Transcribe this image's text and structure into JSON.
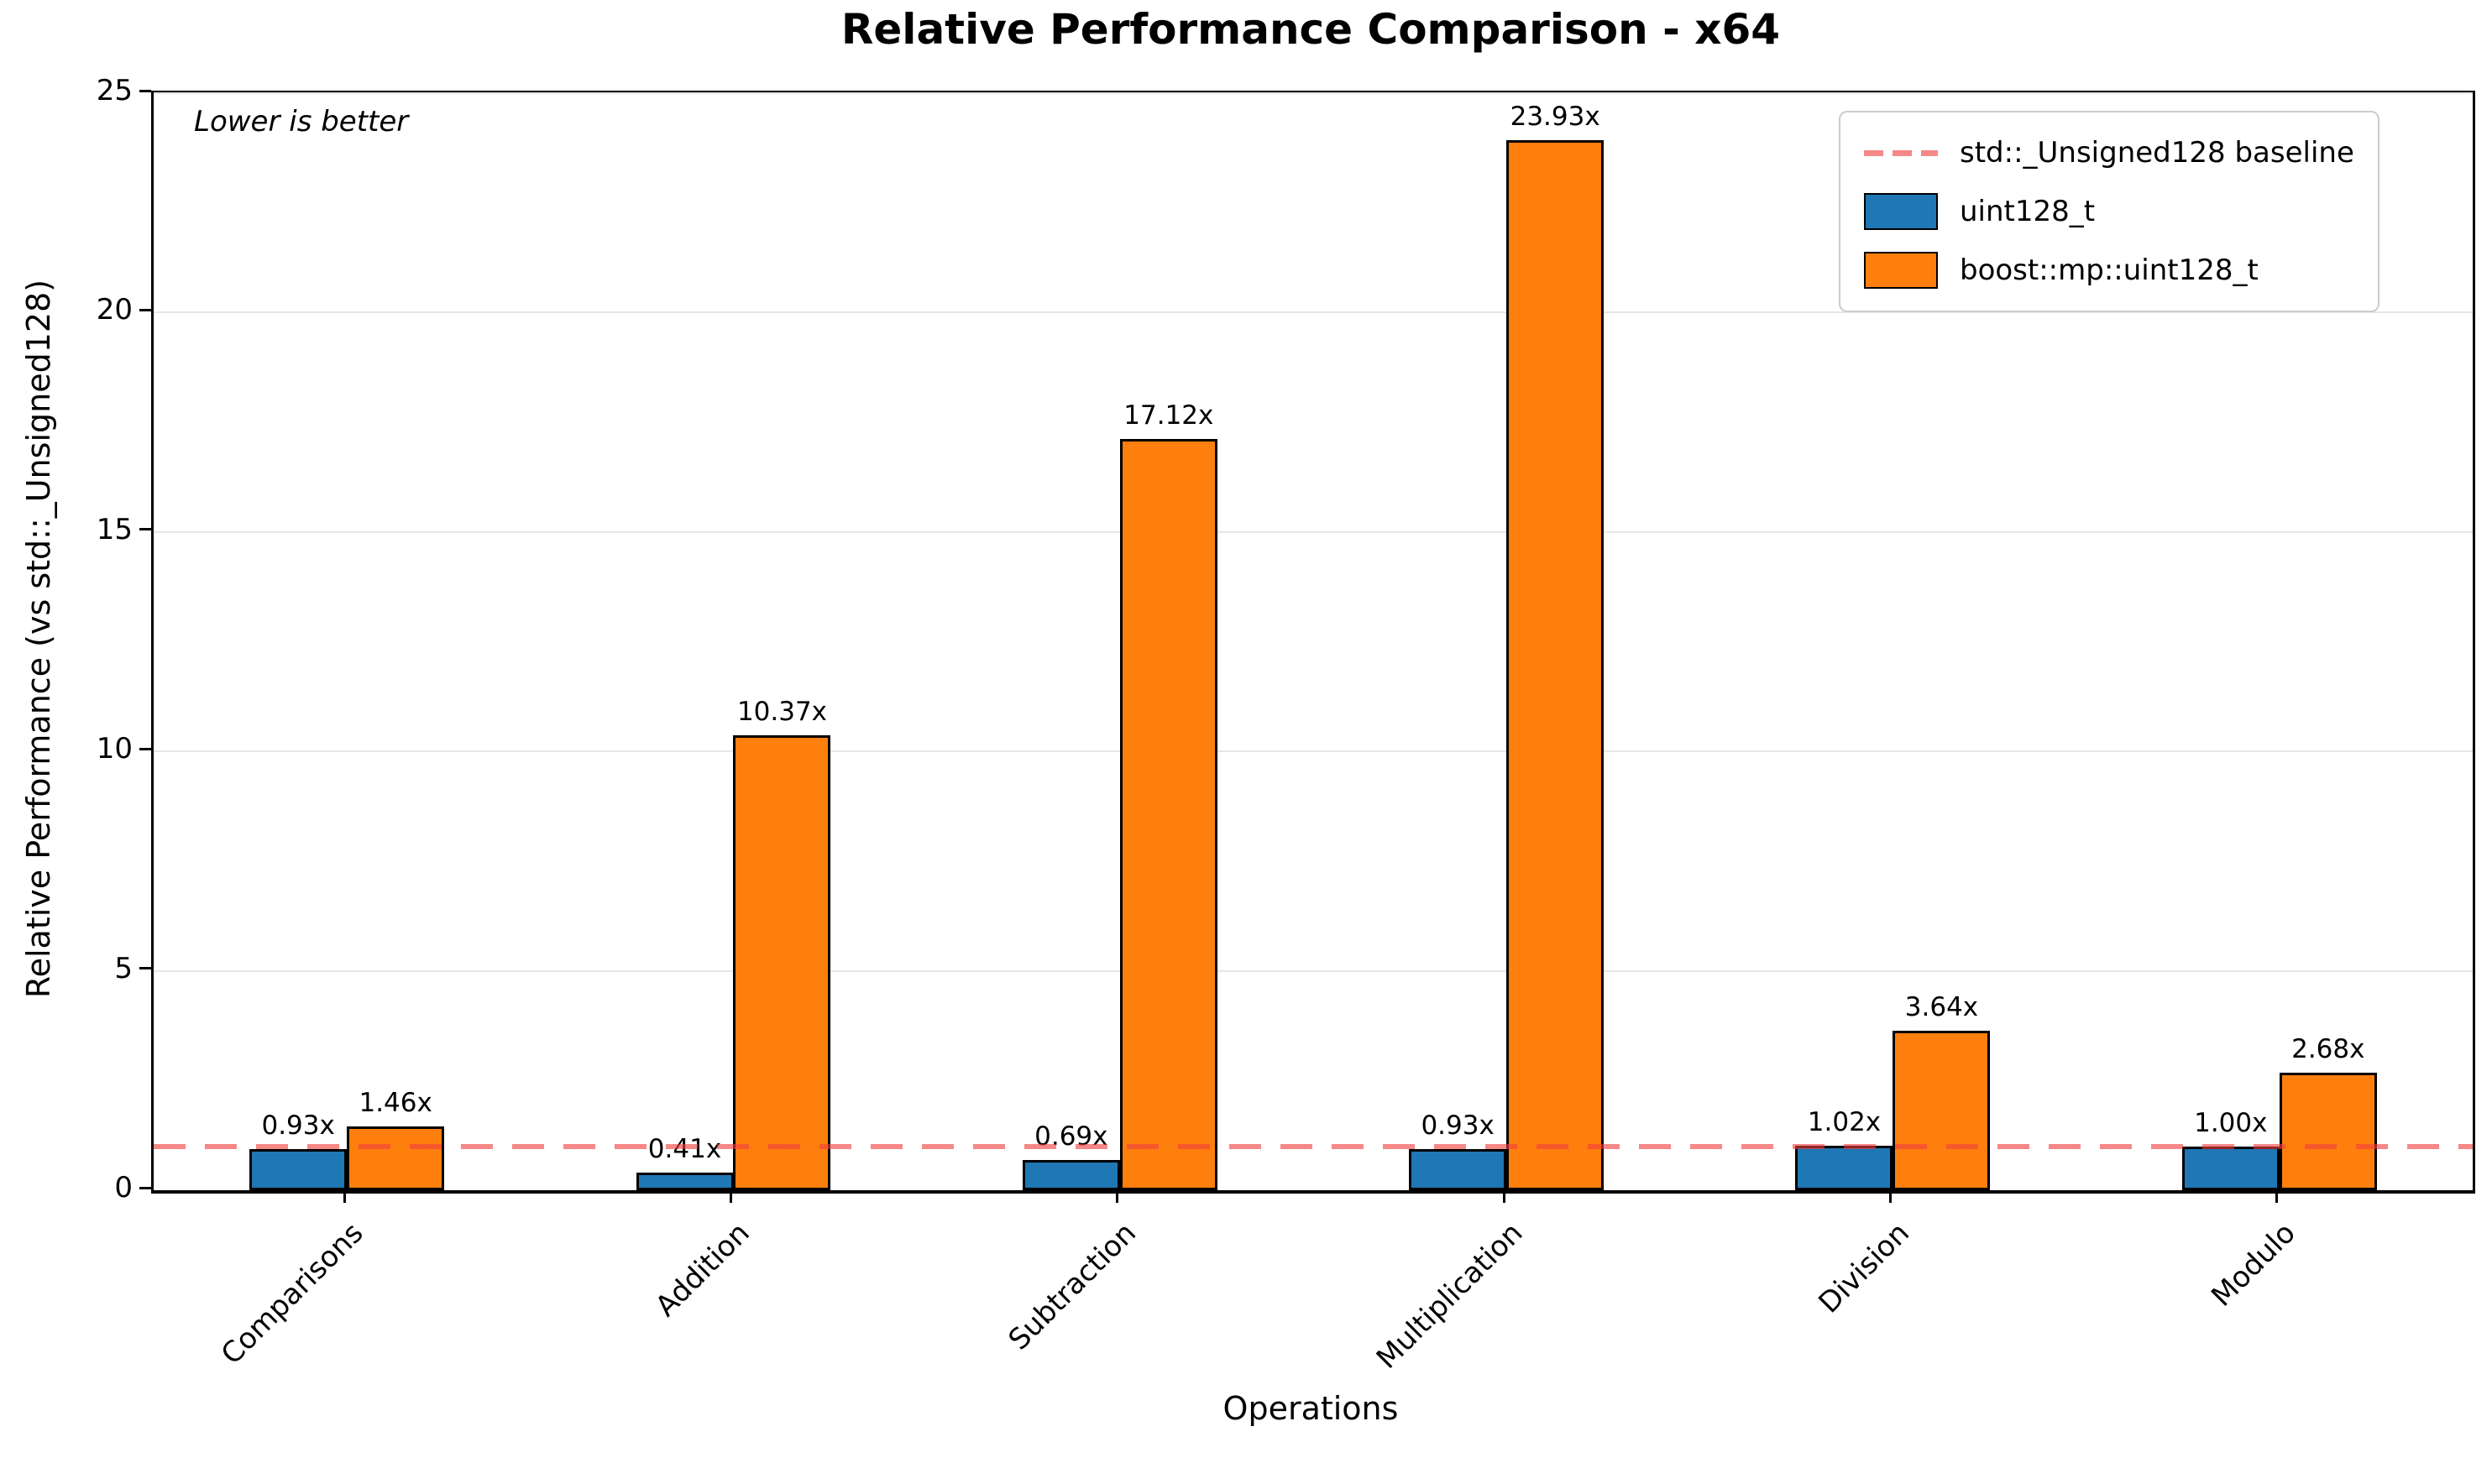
{
  "chart_data": {
    "type": "bar",
    "title": "Relative Performance Comparison - x64",
    "xlabel": "Operations",
    "ylabel": "Relative Performance (vs std::_Unsigned128)",
    "annotation": "Lower is better",
    "ylim": [
      0,
      25
    ],
    "yticks": [
      0,
      5,
      10,
      15,
      20,
      25
    ],
    "grid": "horizontal",
    "legend_position": "upper right",
    "categories": [
      "Comparisons",
      "Addition",
      "Subtraction",
      "Multiplication",
      "Division",
      "Modulo"
    ],
    "series": [
      {
        "name": "uint128_t",
        "color": "#1f77b4",
        "values": [
          0.93,
          0.41,
          0.69,
          0.93,
          1.02,
          1.0
        ],
        "labels": [
          "0.93x",
          "0.41x",
          "0.69x",
          "0.93x",
          "1.02x",
          "1.00x"
        ]
      },
      {
        "name": "boost::mp::uint128_t",
        "color": "#ff7f0e",
        "values": [
          1.46,
          10.37,
          17.12,
          23.93,
          3.64,
          2.68
        ],
        "labels": [
          "1.46x",
          "10.37x",
          "17.12x",
          "23.93x",
          "3.64x",
          "2.68x"
        ]
      }
    ],
    "baseline": {
      "label": "std::_Unsigned128 baseline",
      "value": 1.0,
      "color": "rgba(240,62,62,0.62)",
      "style": "dashed"
    }
  }
}
